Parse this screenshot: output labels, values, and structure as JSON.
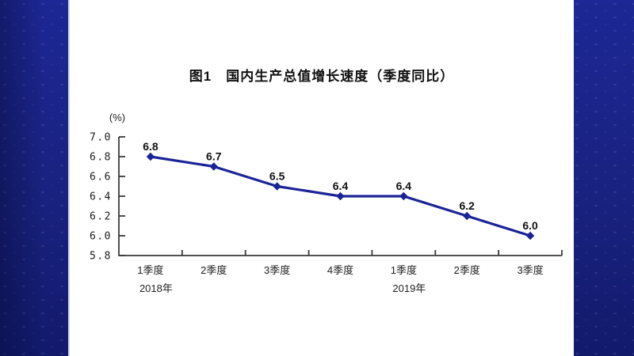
{
  "colors": {
    "background_blue": "#1a238c",
    "panel": "#ffffff",
    "axis": "#3a3a3a",
    "text": "#1a1a1a"
  },
  "chart_data": {
    "type": "line",
    "title": "图1　国内生产总值增长速度（季度同比）",
    "unit_label": "(%)",
    "categories": [
      "1季度",
      "2季度",
      "3季度",
      "4季度",
      "1季度",
      "2季度",
      "3季度"
    ],
    "year_labels": [
      {
        "index": 0,
        "label": "2018年"
      },
      {
        "index": 4,
        "label": "2019年"
      }
    ],
    "values": [
      6.8,
      6.7,
      6.5,
      6.4,
      6.4,
      6.2,
      6.0
    ],
    "data_labels": [
      "6.8",
      "6.7",
      "6.5",
      "6.4",
      "6.4",
      "6.2",
      "6.0"
    ],
    "ylim": [
      5.8,
      7.0
    ],
    "yticks": [
      "7.0",
      "6.8",
      "6.6",
      "6.4",
      "6.2",
      "6.0",
      "5.8"
    ],
    "line_color": "#1b2497",
    "marker": "diamond",
    "grid": false,
    "legend": "none"
  }
}
